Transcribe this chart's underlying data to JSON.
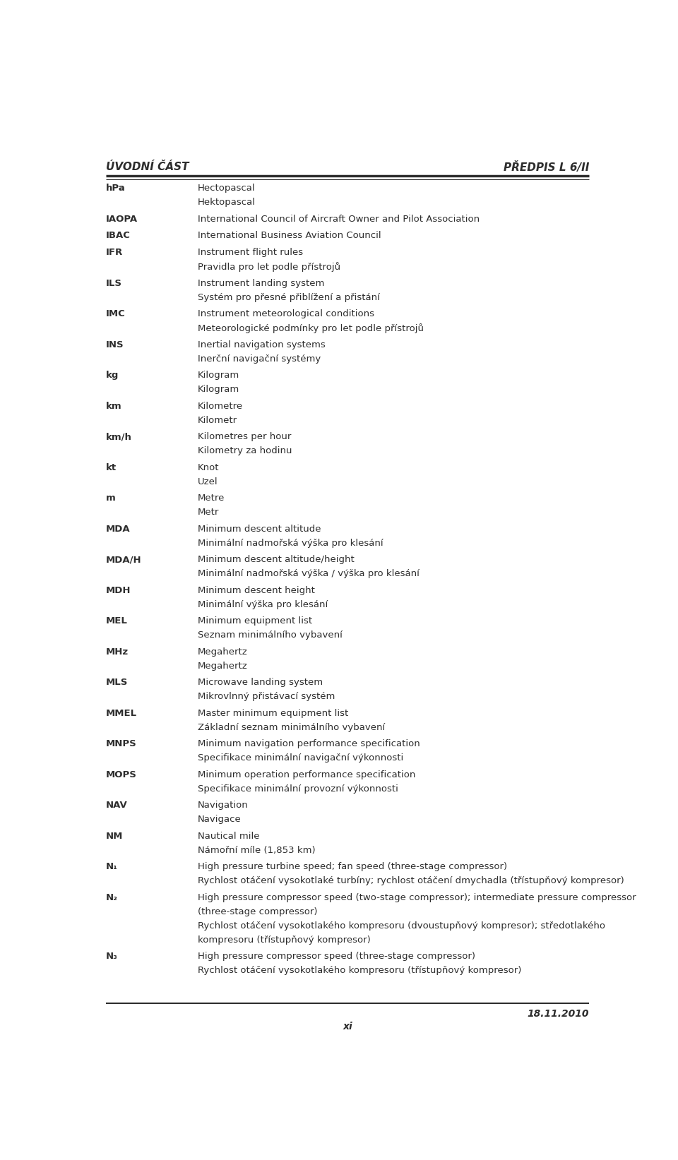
{
  "header_left": "ÚVODNÍ ČÁST",
  "header_right": "PŘEDPIS L 6/II",
  "footer_date": "18.11.2010",
  "footer_page": "xi",
  "bg_color": "#ffffff",
  "text_color": "#2d2d2d",
  "header_color": "#2d2d2d",
  "line_color": "#2d2d2d",
  "entries": [
    {
      "abbr": "hPa",
      "lines": [
        "Hectopascal",
        "Hektopascal"
      ]
    },
    {
      "abbr": "IAOPA",
      "lines": [
        "International Council of Aircraft Owner and Pilot Association"
      ]
    },
    {
      "abbr": "IBAC",
      "lines": [
        "International Business Aviation Council"
      ]
    },
    {
      "abbr": "IFR",
      "lines": [
        "Instrument flight rules",
        "Pravidla pro let podle přístrojů"
      ]
    },
    {
      "abbr": "ILS",
      "lines": [
        "Instrument landing system",
        "Systém pro přesné přiblížení a přistání"
      ]
    },
    {
      "abbr": "IMC",
      "lines": [
        "Instrument meteorological conditions",
        "Meteorologické podmínky pro let podle přístrojů"
      ]
    },
    {
      "abbr": "INS",
      "lines": [
        "Inertial navigation systems",
        "Inerční navigační systémy"
      ]
    },
    {
      "abbr": "kg",
      "lines": [
        "Kilogram",
        "Kilogram"
      ]
    },
    {
      "abbr": "km",
      "lines": [
        "Kilometre",
        "Kilometr"
      ]
    },
    {
      "abbr": "km/h",
      "lines": [
        "Kilometres per hour",
        "Kilometry za hodinu"
      ]
    },
    {
      "abbr": "kt",
      "lines": [
        "Knot",
        "Uzel"
      ]
    },
    {
      "abbr": "m",
      "lines": [
        "Metre",
        "Metr"
      ]
    },
    {
      "abbr": "MDA",
      "lines": [
        "Minimum descent altitude",
        "Minimální nadmořská výška pro klesání"
      ]
    },
    {
      "abbr": "MDA/H",
      "lines": [
        "Minimum descent altitude/height",
        "Minimální nadmořská výška / výška pro klesání"
      ]
    },
    {
      "abbr": "MDH",
      "lines": [
        "Minimum descent height",
        "Minimální výška pro klesání"
      ]
    },
    {
      "abbr": "MEL",
      "lines": [
        "Minimum equipment list",
        "Seznam minimálního vybavení"
      ]
    },
    {
      "abbr": "MHz",
      "lines": [
        "Megahertz",
        "Megahertz"
      ]
    },
    {
      "abbr": "MLS",
      "lines": [
        "Microwave landing system",
        "Mikrovlnný přistávací systém"
      ]
    },
    {
      "abbr": "MMEL",
      "lines": [
        "Master minimum equipment list",
        "Základní seznam minimálního vybavení"
      ]
    },
    {
      "abbr": "MNPS",
      "lines": [
        "Minimum navigation performance specification",
        "Specifikace minimální navigační výkonnosti"
      ]
    },
    {
      "abbr": "MOPS",
      "lines": [
        "Minimum operation performance specification",
        "Specifikace minimální provozní výkonnosti"
      ]
    },
    {
      "abbr": "NAV",
      "lines": [
        "Navigation",
        "Navigace"
      ]
    },
    {
      "abbr": "NM",
      "lines": [
        "Nautical mile",
        "Námořní míle (1,853 km)"
      ]
    },
    {
      "abbr": "N₁",
      "lines": [
        "High pressure turbine speed; fan speed (three-stage compressor)",
        "Rychlost otáčení vysokotlaké turbíny; rychlost otáčení dmychadla (třístupňový kompresor)"
      ]
    },
    {
      "abbr": "N₂",
      "lines": [
        "High pressure compressor speed (two-stage compressor); intermediate pressure compressor",
        "(three-stage compressor)",
        "Rychlost otáčení vysokotlakého kompresoru (dvoustupňový kompresor); středotlakého",
        "kompresoru (třístupňový kompresor)"
      ]
    },
    {
      "abbr": "N₃",
      "lines": [
        "High pressure compressor speed (three-stage compressor)",
        "Rychlost otáčení vysokotlakého kompresoru (třístupňový kompresor)"
      ]
    }
  ]
}
